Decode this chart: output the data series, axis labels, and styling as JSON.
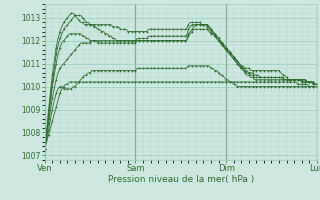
{
  "background_color": "#cce8e0",
  "grid_color_major": "#99ccbb",
  "grid_color_minor": "#b3d9cc",
  "line_color": "#2d6a2d",
  "xlabel": "Pression niveau de la mer( hPa )",
  "ylim": [
    1006.8,
    1013.6
  ],
  "yticks": [
    1007,
    1008,
    1009,
    1010,
    1011,
    1012,
    1013
  ],
  "xtick_labels": [
    "Ven",
    "Sam",
    "Dim",
    "Lun"
  ],
  "xtick_positions": [
    0,
    48,
    96,
    144
  ],
  "total_points": 145,
  "series": [
    [
      1007.3,
      1007.6,
      1007.9,
      1008.2,
      1008.5,
      1008.8,
      1009.1,
      1009.4,
      1009.7,
      1009.9,
      1010.0,
      1010.1,
      1010.1,
      1010.2,
      1010.2,
      1010.2,
      1010.2,
      1010.2,
      1010.2,
      1010.2,
      1010.2,
      1010.2,
      1010.2,
      1010.2,
      1010.2,
      1010.2,
      1010.2,
      1010.2,
      1010.2,
      1010.2,
      1010.2,
      1010.2,
      1010.2,
      1010.2,
      1010.2,
      1010.2,
      1010.2,
      1010.2,
      1010.2,
      1010.2,
      1010.2,
      1010.2,
      1010.2,
      1010.2,
      1010.2,
      1010.2,
      1010.2,
      1010.2,
      1010.2,
      1010.2,
      1010.2,
      1010.2,
      1010.2,
      1010.2,
      1010.2,
      1010.2,
      1010.2,
      1010.2,
      1010.2,
      1010.2,
      1010.2,
      1010.2,
      1010.2,
      1010.2,
      1010.2,
      1010.2,
      1010.2,
      1010.2,
      1010.2,
      1010.2,
      1010.2,
      1010.2,
      1010.2,
      1010.2,
      1010.2,
      1010.2,
      1010.2,
      1010.2,
      1010.2,
      1010.2,
      1010.2,
      1010.2,
      1010.2,
      1010.2,
      1010.2,
      1010.2,
      1010.2,
      1010.2,
      1010.2,
      1010.2,
      1010.2,
      1010.2,
      1010.2,
      1010.2,
      1010.2,
      1010.2,
      1010.2,
      1010.2,
      1010.2,
      1010.2,
      1010.2,
      1010.2,
      1010.2,
      1010.2,
      1010.2,
      1010.2,
      1010.2,
      1010.2,
      1010.2,
      1010.2,
      1010.2,
      1010.2,
      1010.2,
      1010.2,
      1010.2,
      1010.2,
      1010.2,
      1010.2,
      1010.2,
      1010.2,
      1010.2,
      1010.2,
      1010.2,
      1010.2,
      1010.2,
      1010.2,
      1010.2,
      1010.2,
      1010.2,
      1010.2,
      1010.2,
      1010.2,
      1010.2,
      1010.2,
      1010.1,
      1010.1,
      1010.1,
      1010.1,
      1010.1,
      1010.1,
      1010.0,
      1010.0,
      1010.0,
      1010.0,
      1010.0,
      1010.1
    ],
    [
      1007.3,
      1007.7,
      1008.1,
      1008.6,
      1009.0,
      1009.4,
      1009.7,
      1009.9,
      1010.0,
      1010.0,
      1009.9,
      1009.9,
      1009.9,
      1009.9,
      1009.9,
      1010.0,
      1010.0,
      1010.1,
      1010.2,
      1010.3,
      1010.4,
      1010.5,
      1010.5,
      1010.6,
      1010.6,
      1010.7,
      1010.7,
      1010.7,
      1010.7,
      1010.7,
      1010.7,
      1010.7,
      1010.7,
      1010.7,
      1010.7,
      1010.7,
      1010.7,
      1010.7,
      1010.7,
      1010.7,
      1010.7,
      1010.7,
      1010.7,
      1010.7,
      1010.7,
      1010.7,
      1010.7,
      1010.7,
      1010.7,
      1010.8,
      1010.8,
      1010.8,
      1010.8,
      1010.8,
      1010.8,
      1010.8,
      1010.8,
      1010.8,
      1010.8,
      1010.8,
      1010.8,
      1010.8,
      1010.8,
      1010.8,
      1010.8,
      1010.8,
      1010.8,
      1010.8,
      1010.8,
      1010.8,
      1010.8,
      1010.8,
      1010.8,
      1010.8,
      1010.8,
      1010.8,
      1010.9,
      1010.9,
      1010.9,
      1010.9,
      1010.9,
      1010.9,
      1010.9,
      1010.9,
      1010.9,
      1010.9,
      1010.9,
      1010.9,
      1010.8,
      1010.8,
      1010.7,
      1010.7,
      1010.6,
      1010.5,
      1010.5,
      1010.4,
      1010.3,
      1010.3,
      1010.2,
      1010.2,
      1010.1,
      1010.1,
      1010.0,
      1010.0,
      1010.0,
      1010.0,
      1010.0,
      1010.0,
      1010.0,
      1010.0,
      1010.0,
      1010.0,
      1010.0,
      1010.0,
      1010.0,
      1010.0,
      1010.0,
      1010.0,
      1010.0,
      1010.0,
      1010.0,
      1010.0,
      1010.0,
      1010.0,
      1010.0,
      1010.0,
      1010.0,
      1010.0,
      1010.0,
      1010.0,
      1010.0,
      1010.0,
      1010.0,
      1010.0,
      1010.0,
      1010.0,
      1010.0,
      1010.0,
      1010.0,
      1010.0,
      1010.0,
      1010.0,
      1010.0,
      1010.0,
      1010.0,
      1010.1
    ],
    [
      1007.3,
      1007.8,
      1008.4,
      1009.0,
      1009.5,
      1009.9,
      1010.3,
      1010.6,
      1010.8,
      1010.9,
      1011.0,
      1011.1,
      1011.2,
      1011.3,
      1011.4,
      1011.5,
      1011.6,
      1011.7,
      1011.8,
      1011.9,
      1011.9,
      1011.9,
      1011.9,
      1011.9,
      1011.9,
      1012.0,
      1012.0,
      1012.0,
      1012.0,
      1012.0,
      1012.0,
      1012.0,
      1012.0,
      1012.0,
      1012.0,
      1012.0,
      1012.0,
      1012.0,
      1012.0,
      1012.0,
      1012.0,
      1012.0,
      1012.0,
      1012.0,
      1012.0,
      1012.0,
      1012.0,
      1012.0,
      1012.0,
      1012.0,
      1012.0,
      1012.0,
      1012.0,
      1012.0,
      1012.0,
      1012.0,
      1012.0,
      1012.0,
      1012.0,
      1012.0,
      1012.0,
      1012.0,
      1012.0,
      1012.0,
      1012.0,
      1012.0,
      1012.0,
      1012.0,
      1012.0,
      1012.0,
      1012.0,
      1012.0,
      1012.0,
      1012.0,
      1012.0,
      1012.0,
      1012.2,
      1012.3,
      1012.4,
      1012.5,
      1012.5,
      1012.5,
      1012.5,
      1012.5,
      1012.5,
      1012.5,
      1012.5,
      1012.4,
      1012.3,
      1012.3,
      1012.2,
      1012.1,
      1012.0,
      1011.9,
      1011.8,
      1011.7,
      1011.6,
      1011.5,
      1011.4,
      1011.3,
      1011.2,
      1011.1,
      1011.0,
      1010.9,
      1010.8,
      1010.7,
      1010.6,
      1010.5,
      1010.5,
      1010.4,
      1010.4,
      1010.3,
      1010.3,
      1010.3,
      1010.3,
      1010.3,
      1010.3,
      1010.3,
      1010.3,
      1010.3,
      1010.3,
      1010.3,
      1010.3,
      1010.3,
      1010.3,
      1010.3,
      1010.3,
      1010.3,
      1010.3,
      1010.3,
      1010.3,
      1010.3,
      1010.3,
      1010.3,
      1010.3,
      1010.3,
      1010.3,
      1010.3,
      1010.3,
      1010.2,
      1010.2,
      1010.2,
      1010.1,
      1010.1,
      1010.1,
      1010.2
    ],
    [
      1007.3,
      1007.9,
      1008.6,
      1009.3,
      1010.0,
      1010.5,
      1011.0,
      1011.4,
      1011.7,
      1011.9,
      1012.0,
      1012.1,
      1012.2,
      1012.3,
      1012.3,
      1012.3,
      1012.3,
      1012.3,
      1012.3,
      1012.3,
      1012.2,
      1012.2,
      1012.1,
      1012.1,
      1012.0,
      1012.0,
      1012.0,
      1012.0,
      1011.9,
      1011.9,
      1011.9,
      1011.9,
      1011.9,
      1011.9,
      1011.9,
      1011.9,
      1011.9,
      1011.9,
      1011.9,
      1011.9,
      1011.9,
      1011.9,
      1011.9,
      1011.9,
      1011.9,
      1011.9,
      1011.9,
      1011.9,
      1011.9,
      1012.0,
      1012.0,
      1012.0,
      1012.0,
      1012.0,
      1012.0,
      1012.0,
      1012.0,
      1012.0,
      1012.0,
      1012.0,
      1012.0,
      1012.0,
      1012.0,
      1012.0,
      1012.0,
      1012.0,
      1012.0,
      1012.0,
      1012.0,
      1012.0,
      1012.0,
      1012.0,
      1012.0,
      1012.0,
      1012.0,
      1012.0,
      1012.3,
      1012.4,
      1012.5,
      1012.6,
      1012.7,
      1012.7,
      1012.7,
      1012.7,
      1012.7,
      1012.7,
      1012.7,
      1012.6,
      1012.5,
      1012.4,
      1012.3,
      1012.2,
      1012.1,
      1012.0,
      1011.9,
      1011.8,
      1011.7,
      1011.6,
      1011.5,
      1011.4,
      1011.3,
      1011.2,
      1011.1,
      1011.0,
      1010.9,
      1010.8,
      1010.7,
      1010.6,
      1010.6,
      1010.5,
      1010.5,
      1010.4,
      1010.4,
      1010.4,
      1010.4,
      1010.4,
      1010.4,
      1010.4,
      1010.4,
      1010.4,
      1010.4,
      1010.4,
      1010.4,
      1010.4,
      1010.4,
      1010.4,
      1010.3,
      1010.3,
      1010.3,
      1010.3,
      1010.3,
      1010.3,
      1010.3,
      1010.3,
      1010.3,
      1010.3,
      1010.2,
      1010.2,
      1010.2,
      1010.2,
      1010.2,
      1010.2,
      1010.2,
      1010.1,
      1010.1,
      1010.2
    ],
    [
      1007.3,
      1008.0,
      1008.8,
      1009.5,
      1010.2,
      1010.8,
      1011.4,
      1011.8,
      1012.1,
      1012.3,
      1012.5,
      1012.6,
      1012.7,
      1012.8,
      1012.9,
      1013.0,
      1013.1,
      1013.1,
      1013.1,
      1013.1,
      1013.0,
      1012.9,
      1012.8,
      1012.8,
      1012.7,
      1012.7,
      1012.6,
      1012.6,
      1012.5,
      1012.5,
      1012.4,
      1012.4,
      1012.3,
      1012.3,
      1012.2,
      1012.2,
      1012.1,
      1012.1,
      1012.0,
      1012.0,
      1012.0,
      1012.0,
      1012.0,
      1012.0,
      1012.0,
      1012.0,
      1012.0,
      1012.0,
      1012.0,
      1012.1,
      1012.1,
      1012.1,
      1012.1,
      1012.1,
      1012.1,
      1012.2,
      1012.2,
      1012.2,
      1012.2,
      1012.2,
      1012.2,
      1012.2,
      1012.2,
      1012.2,
      1012.2,
      1012.2,
      1012.2,
      1012.2,
      1012.2,
      1012.2,
      1012.2,
      1012.2,
      1012.2,
      1012.2,
      1012.2,
      1012.2,
      1012.5,
      1012.6,
      1012.7,
      1012.7,
      1012.7,
      1012.7,
      1012.7,
      1012.7,
      1012.7,
      1012.7,
      1012.7,
      1012.6,
      1012.5,
      1012.4,
      1012.3,
      1012.2,
      1012.1,
      1012.0,
      1011.9,
      1011.8,
      1011.7,
      1011.6,
      1011.5,
      1011.4,
      1011.3,
      1011.2,
      1011.1,
      1011.0,
      1010.9,
      1010.9,
      1010.8,
      1010.8,
      1010.8,
      1010.7,
      1010.7,
      1010.7,
      1010.7,
      1010.7,
      1010.7,
      1010.7,
      1010.7,
      1010.7,
      1010.7,
      1010.7,
      1010.7,
      1010.7,
      1010.7,
      1010.7,
      1010.7,
      1010.6,
      1010.5,
      1010.5,
      1010.4,
      1010.3,
      1010.3,
      1010.3,
      1010.3,
      1010.3,
      1010.3,
      1010.3,
      1010.2,
      1010.2,
      1010.2,
      1010.2,
      1010.2,
      1010.2,
      1010.2,
      1010.1,
      1010.1,
      1010.2
    ],
    [
      1007.3,
      1008.1,
      1009.0,
      1009.8,
      1010.5,
      1011.1,
      1011.7,
      1012.1,
      1012.4,
      1012.6,
      1012.8,
      1012.9,
      1013.0,
      1013.1,
      1013.2,
      1013.2,
      1013.1,
      1013.0,
      1012.9,
      1012.8,
      1012.8,
      1012.7,
      1012.7,
      1012.7,
      1012.7,
      1012.7,
      1012.7,
      1012.7,
      1012.7,
      1012.7,
      1012.7,
      1012.7,
      1012.7,
      1012.7,
      1012.7,
      1012.7,
      1012.6,
      1012.6,
      1012.6,
      1012.6,
      1012.5,
      1012.5,
      1012.5,
      1012.5,
      1012.4,
      1012.4,
      1012.4,
      1012.4,
      1012.4,
      1012.4,
      1012.4,
      1012.4,
      1012.4,
      1012.4,
      1012.4,
      1012.5,
      1012.5,
      1012.5,
      1012.5,
      1012.5,
      1012.5,
      1012.5,
      1012.5,
      1012.5,
      1012.5,
      1012.5,
      1012.5,
      1012.5,
      1012.5,
      1012.5,
      1012.5,
      1012.5,
      1012.5,
      1012.5,
      1012.5,
      1012.5,
      1012.7,
      1012.8,
      1012.8,
      1012.8,
      1012.8,
      1012.8,
      1012.8,
      1012.7,
      1012.7,
      1012.7,
      1012.6,
      1012.5,
      1012.4,
      1012.3,
      1012.2,
      1012.1,
      1012.0,
      1011.9,
      1011.8,
      1011.7,
      1011.6,
      1011.5,
      1011.4,
      1011.3,
      1011.2,
      1011.1,
      1011.0,
      1010.9,
      1010.8,
      1010.8,
      1010.7,
      1010.7,
      1010.6,
      1010.6,
      1010.6,
      1010.5,
      1010.5,
      1010.5,
      1010.4,
      1010.4,
      1010.4,
      1010.4,
      1010.4,
      1010.4,
      1010.4,
      1010.4,
      1010.4,
      1010.4,
      1010.4,
      1010.4,
      1010.4,
      1010.3,
      1010.3,
      1010.3,
      1010.3,
      1010.3,
      1010.3,
      1010.3,
      1010.3,
      1010.3,
      1010.3,
      1010.3,
      1010.3,
      1010.2,
      1010.2,
      1010.2,
      1010.2,
      1010.1,
      1010.1,
      1010.2
    ]
  ]
}
